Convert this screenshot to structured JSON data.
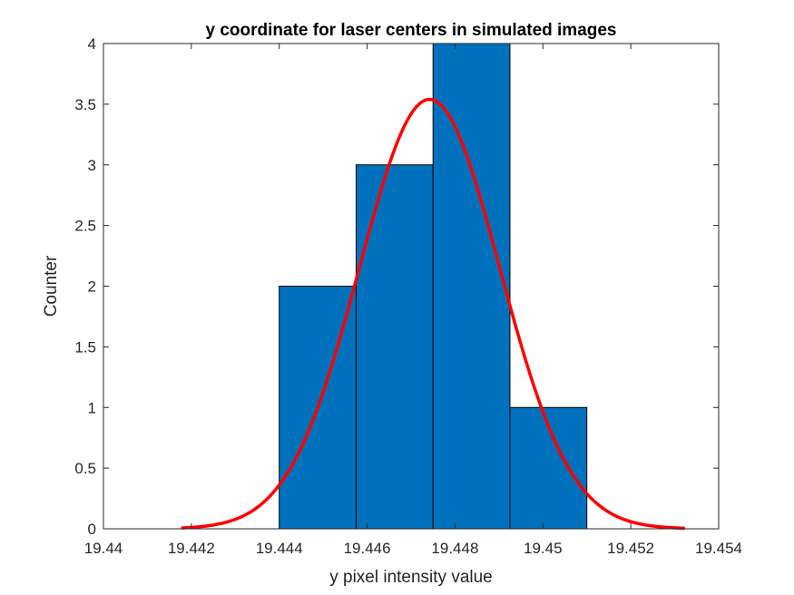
{
  "chart_data": {
    "type": "bar",
    "title": "y coordinate for laser centers in simulated images",
    "xlabel": "y pixel intensity value",
    "ylabel": "Counter",
    "xlim": [
      19.44,
      19.454
    ],
    "ylim": [
      0,
      4
    ],
    "xticks": [
      "19.44",
      "19.442",
      "19.444",
      "19.446",
      "19.448",
      "19.45",
      "19.452",
      "19.454"
    ],
    "yticks": [
      "0",
      "0.5",
      "1",
      "1.5",
      "2",
      "2.5",
      "3",
      "3.5",
      "4"
    ],
    "grid": false,
    "histogram": {
      "bin_edges": [
        19.444,
        19.44575,
        19.4475,
        19.44925,
        19.451
      ],
      "counts": [
        2,
        3,
        4,
        1
      ],
      "color": "#0072BD"
    },
    "fit_curve": {
      "type": "normal",
      "mean": 19.44742,
      "sigma": 0.0016,
      "peak": 3.54,
      "x_range": [
        19.4418,
        19.4532
      ],
      "color": "#FF0000"
    }
  }
}
